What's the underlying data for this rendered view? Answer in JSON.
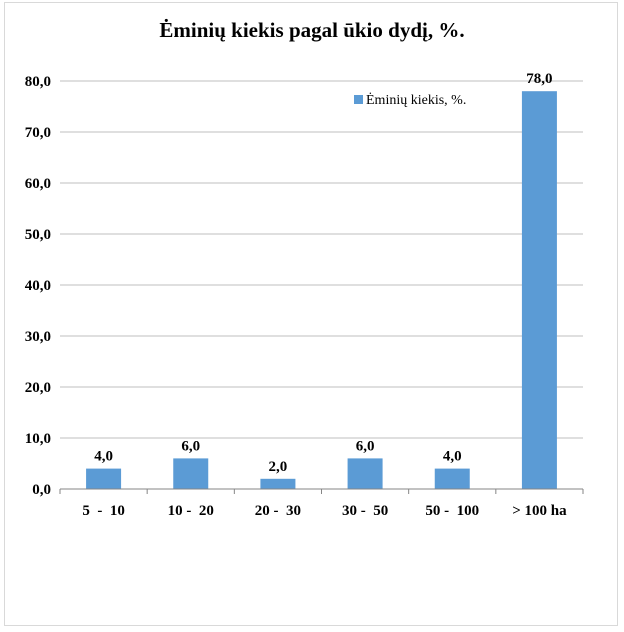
{
  "chart_data": {
    "type": "bar",
    "title": "Ėminių kiekis pagal ūkio dydį, %.",
    "categories": [
      "5  -  10",
      "10 -  20",
      "20 -  30",
      "30 -  50",
      "50 -  100",
      "> 100 ha"
    ],
    "series": [
      {
        "name": "Ėminių kiekis, %.",
        "values": [
          4.0,
          6.0,
          2.0,
          6.0,
          4.0,
          78.0
        ],
        "color": "#5b9bd5"
      }
    ],
    "value_labels": [
      "4,0",
      "6,0",
      "2,0",
      "6,0",
      "4,0",
      "78,0"
    ],
    "y_ticks": [
      {
        "value": 0,
        "label": "0,0"
      },
      {
        "value": 10,
        "label": "10,0"
      },
      {
        "value": 20,
        "label": "20,0"
      },
      {
        "value": 30,
        "label": "30,0"
      },
      {
        "value": 40,
        "label": "40,0"
      },
      {
        "value": 50,
        "label": "50,0"
      },
      {
        "value": 60,
        "label": "60,0"
      },
      {
        "value": 70,
        "label": "70,0"
      },
      {
        "value": 80,
        "label": "80,0"
      }
    ],
    "ylim": [
      0,
      80
    ],
    "xlabel": "",
    "ylabel": "",
    "grid": true,
    "legend_position": "top-right",
    "gridline_color": "#bfbfbf",
    "axis_color": "#868686"
  }
}
